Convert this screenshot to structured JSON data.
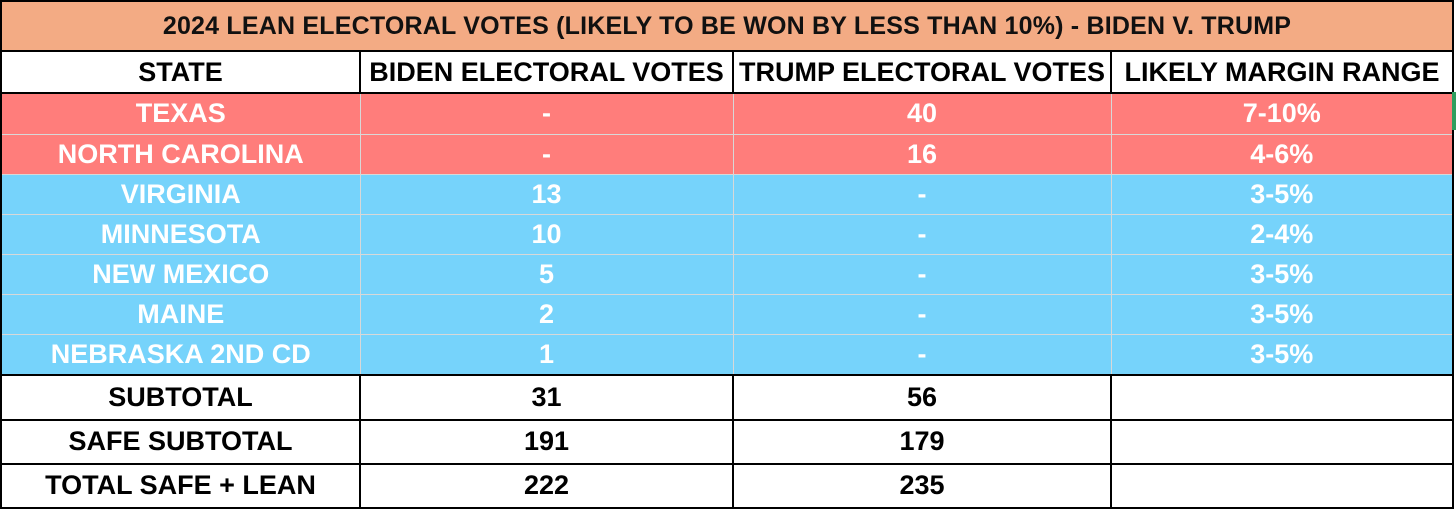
{
  "title": "2024 LEAN ELECTORAL VOTES (LIKELY TO BE WON BY LESS THAN 10%) - BIDEN V. TRUMP",
  "headers": {
    "state": "STATE",
    "biden": "BIDEN ELECTORAL VOTES",
    "trump": "TRUMP ELECTORAL VOTES",
    "margin": "LIKELY MARGIN RANGE"
  },
  "colors": {
    "title_bg": "#f3ab84",
    "trump_lean": "#ff7d7b",
    "biden_lean": "#76d3fb"
  },
  "rows": [
    {
      "state": "TEXAS",
      "biden": "-",
      "trump": "40",
      "margin": "7-10%",
      "lean": "trump"
    },
    {
      "state": "NORTH CAROLINA",
      "biden": "-",
      "trump": "16",
      "margin": "4-6%",
      "lean": "trump"
    },
    {
      "state": "VIRGINIA",
      "biden": "13",
      "trump": "-",
      "margin": "3-5%",
      "lean": "biden"
    },
    {
      "state": "MINNESOTA",
      "biden": "10",
      "trump": "-",
      "margin": "2-4%",
      "lean": "biden"
    },
    {
      "state": "NEW MEXICO",
      "biden": "5",
      "trump": "-",
      "margin": "3-5%",
      "lean": "biden"
    },
    {
      "state": "MAINE",
      "biden": "2",
      "trump": "-",
      "margin": "3-5%",
      "lean": "biden"
    },
    {
      "state": "NEBRASKA 2ND CD",
      "biden": "1",
      "trump": "-",
      "margin": "3-5%",
      "lean": "biden"
    }
  ],
  "totals": [
    {
      "label": "SUBTOTAL",
      "biden": "31",
      "trump": "56",
      "margin": ""
    },
    {
      "label": "SAFE SUBTOTAL",
      "biden": "191",
      "trump": "179",
      "margin": ""
    },
    {
      "label": "TOTAL SAFE + LEAN",
      "biden": "222",
      "trump": "235",
      "margin": ""
    }
  ]
}
